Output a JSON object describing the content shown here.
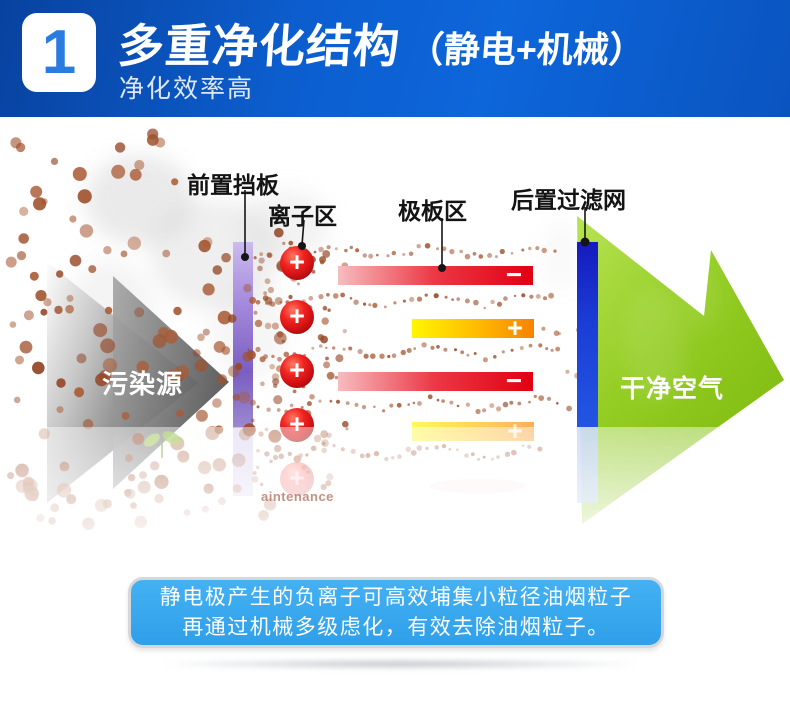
{
  "header": {
    "badge": "1",
    "title": "多重净化结构",
    "title_suffix": "（静电+机械）",
    "subtitle": "净化效率高",
    "bg_color": "#0c60d2",
    "badge_number_color": "#2b7ce0"
  },
  "diagram": {
    "labels": {
      "front_baffle": "前置挡板",
      "ion_zone": "离子区",
      "plate_zone": "极板区",
      "rear_filter": "后置过滤网",
      "pollution_source": "污染源",
      "clean_air": "干净空气"
    },
    "watermark": "aintenance",
    "ion_symbol": "+",
    "plates": [
      {
        "polarity": "−",
        "type": "negative"
      },
      {
        "polarity": "+",
        "type": "positive"
      },
      {
        "polarity": "−",
        "type": "negative"
      },
      {
        "polarity": "+",
        "type": "positive"
      }
    ],
    "colors": {
      "pollutant_dot": "#a0522d",
      "gray_arrow": "#6a6a6a",
      "baffle_purple": "#8a6fc8",
      "ion_red": "#e01616",
      "plate_negative": "#e60012",
      "plate_positive": "#ff9000",
      "filter_blue": "#1c3ad0",
      "clean_air_green": "#8cc81e"
    }
  },
  "footer": {
    "line1": "静电极产生的负离子可高效埔集小粒径油烟粒子",
    "line2": "再通过机械多级虑化，有效去除油烟粒子。"
  }
}
